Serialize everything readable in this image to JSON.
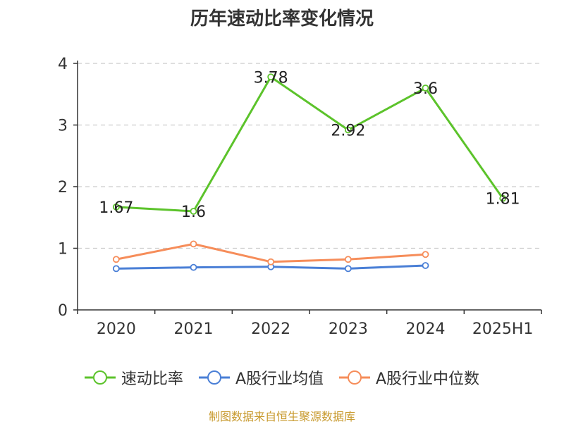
{
  "chart_data": {
    "type": "line",
    "title": "历年速动比率变化情况",
    "categories": [
      "2020",
      "2021",
      "2022",
      "2023",
      "2024",
      "2025H1"
    ],
    "ylim": [
      0,
      4
    ],
    "yticks": [
      0,
      1,
      2,
      3,
      4
    ],
    "grid": true,
    "legend_position": "bottom",
    "series": [
      {
        "name": "速动比率",
        "color": "#5cc32b",
        "values": [
          1.67,
          1.6,
          3.78,
          2.92,
          3.6,
          1.81
        ],
        "labels": [
          "1.67",
          "1.6",
          "3.78",
          "2.92",
          "3.6",
          "1.81"
        ]
      },
      {
        "name": "A股行业均值",
        "color": "#4a7fd6",
        "values": [
          0.67,
          0.69,
          0.7,
          0.67,
          0.72,
          null
        ]
      },
      {
        "name": "A股行业中位数",
        "color": "#f68d5a",
        "values": [
          0.82,
          1.07,
          0.78,
          0.82,
          0.9,
          null
        ]
      }
    ],
    "source_note": "制图数据来自恒生聚源数据库"
  }
}
